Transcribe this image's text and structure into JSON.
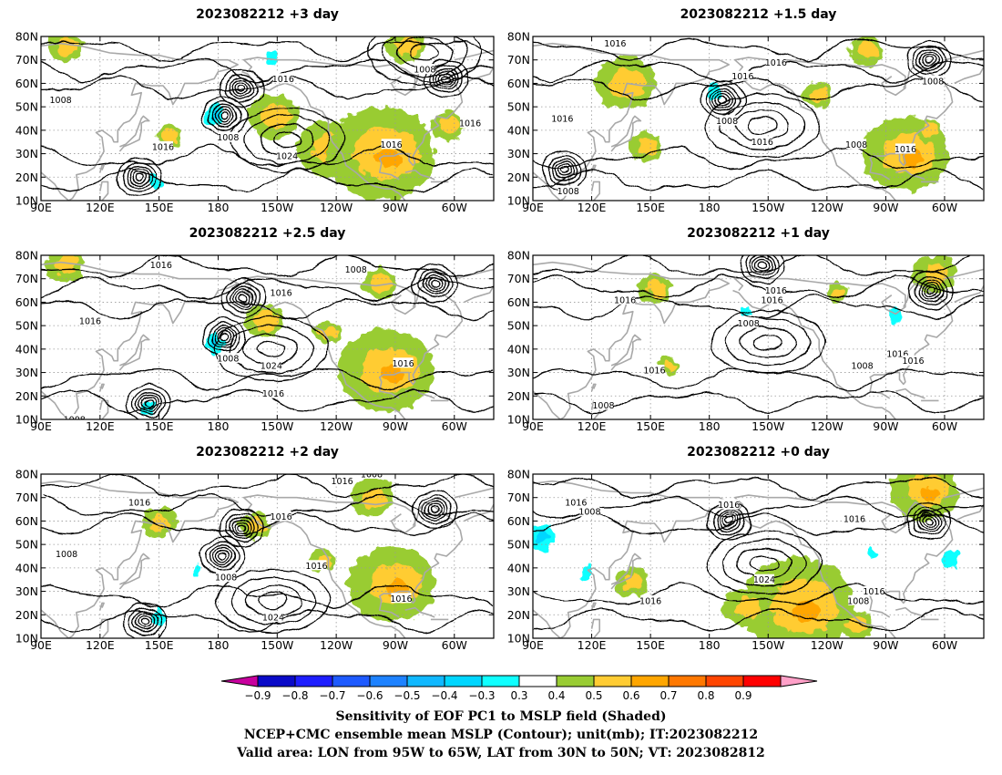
{
  "panels": [
    {
      "title": "2023082212  +3 day",
      "highs": [
        {
          "lon": 215,
          "lat": 36,
          "label": "1024"
        },
        {
          "lon": 285,
          "lat": 73,
          "label": "1008"
        }
      ],
      "lows": [
        {
          "lon": 183,
          "lat": 46,
          "label": "1008"
        },
        {
          "lon": 192,
          "lat": 58
        },
        {
          "lon": 296,
          "lat": 62
        },
        {
          "lon": 140,
          "lat": 20
        }
      ],
      "labels": [
        {
          "lon": 100,
          "lat": 53,
          "text": "1008"
        },
        {
          "lon": 213,
          "lat": 62,
          "text": "1016"
        },
        {
          "lon": 152,
          "lat": 33,
          "text": "1016"
        },
        {
          "lon": 268,
          "lat": 34,
          "text": "1016"
        },
        {
          "lon": 308,
          "lat": 43,
          "text": "1016"
        }
      ],
      "pos": [
        {
          "lon": 236,
          "lat": 32,
          "r": 15
        },
        {
          "lon": 263,
          "lat": 30,
          "r": 25
        },
        {
          "lon": 208,
          "lat": 46,
          "r": 12
        },
        {
          "lon": 275,
          "lat": 76,
          "r": 9
        },
        {
          "lon": 102,
          "lat": 76,
          "r": 8
        },
        {
          "lon": 155,
          "lat": 38,
          "r": 6
        },
        {
          "lon": 297,
          "lat": 42,
          "r": 8
        }
      ],
      "neg": [
        {
          "lon": 178,
          "lat": 46,
          "r": 4
        },
        {
          "lon": 208,
          "lat": 70,
          "r": 3
        },
        {
          "lon": 148,
          "lat": 18,
          "r": 3
        }
      ]
    },
    {
      "title": "2023082212  +1.5 day",
      "highs": [
        {
          "lon": 207,
          "lat": 42,
          "label": "1016"
        }
      ],
      "lows": [
        {
          "lon": 187,
          "lat": 53,
          "label": "1008"
        },
        {
          "lon": 292,
          "lat": 70,
          "label": "1008"
        },
        {
          "lon": 106,
          "lat": 23,
          "label": "1008"
        }
      ],
      "labels": [
        {
          "lon": 132,
          "lat": 77,
          "text": "1016"
        },
        {
          "lon": 214,
          "lat": 69,
          "text": "1016"
        },
        {
          "lon": 197,
          "lat": 63,
          "text": "1016"
        },
        {
          "lon": 105,
          "lat": 45,
          "text": "1016"
        },
        {
          "lon": 255,
          "lat": 34,
          "text": "1008"
        },
        {
          "lon": 280,
          "lat": 32,
          "text": "1016"
        }
      ],
      "pos": [
        {
          "lon": 280,
          "lat": 30,
          "r": 20
        },
        {
          "lon": 137,
          "lat": 60,
          "r": 14
        },
        {
          "lon": 148,
          "lat": 33,
          "r": 8
        },
        {
          "lon": 260,
          "lat": 74,
          "r": 8
        },
        {
          "lon": 235,
          "lat": 55,
          "r": 7
        },
        {
          "lon": 292,
          "lat": 40,
          "r": 6
        }
      ],
      "neg": [
        {
          "lon": 183,
          "lat": 57,
          "r": 3
        }
      ]
    },
    {
      "title": "2023082212  +2.5 day",
      "highs": [
        {
          "lon": 207,
          "lat": 40,
          "label": "1024"
        }
      ],
      "lows": [
        {
          "lon": 183,
          "lat": 45,
          "label": "1008"
        },
        {
          "lon": 193,
          "lat": 62
        },
        {
          "lon": 145,
          "lat": 17
        },
        {
          "lon": 290,
          "lat": 68
        }
      ],
      "labels": [
        {
          "lon": 151,
          "lat": 76,
          "text": "1016"
        },
        {
          "lon": 250,
          "lat": 74,
          "text": "1008"
        },
        {
          "lon": 115,
          "lat": 52,
          "text": "1016"
        },
        {
          "lon": 212,
          "lat": 64,
          "text": "1016"
        },
        {
          "lon": 208,
          "lat": 21,
          "text": "1016"
        },
        {
          "lon": 274,
          "lat": 34,
          "text": "1016"
        },
        {
          "lon": 107,
          "lat": 10,
          "text": "1008"
        }
      ],
      "pos": [
        {
          "lon": 265,
          "lat": 31,
          "r": 22
        },
        {
          "lon": 102,
          "lat": 76,
          "r": 9
        },
        {
          "lon": 203,
          "lat": 52,
          "r": 9
        },
        {
          "lon": 262,
          "lat": 68,
          "r": 8
        },
        {
          "lon": 235,
          "lat": 47,
          "r": 6
        }
      ],
      "neg": [
        {
          "lon": 178,
          "lat": 42,
          "r": 4
        },
        {
          "lon": 145,
          "lat": 15,
          "r": 3
        }
      ]
    },
    {
      "title": "2023082212  +1 day",
      "highs": [
        {
          "lon": 210,
          "lat": 43
        }
      ],
      "lows": [
        {
          "lon": 293,
          "lat": 65
        },
        {
          "lon": 207,
          "lat": 76
        }
      ],
      "labels": [
        {
          "lon": 214,
          "lat": 65,
          "text": "1016"
        },
        {
          "lon": 212,
          "lat": 61,
          "text": "1016"
        },
        {
          "lon": 137,
          "lat": 61,
          "text": "1016"
        },
        {
          "lon": 200,
          "lat": 51,
          "text": "1008"
        },
        {
          "lon": 126,
          "lat": 16,
          "text": "1008"
        },
        {
          "lon": 152,
          "lat": 31,
          "text": "1016"
        },
        {
          "lon": 258,
          "lat": 33,
          "text": "1008"
        },
        {
          "lon": 276,
          "lat": 38,
          "text": "1016"
        },
        {
          "lon": 284,
          "lat": 35,
          "text": "1016"
        }
      ],
      "pos": [
        {
          "lon": 295,
          "lat": 72,
          "r": 10
        },
        {
          "lon": 152,
          "lat": 66,
          "r": 8
        },
        {
          "lon": 159,
          "lat": 33,
          "r": 5
        },
        {
          "lon": 245,
          "lat": 64,
          "r": 5
        }
      ],
      "neg": [
        {
          "lon": 275,
          "lat": 54,
          "r": 3
        },
        {
          "lon": 199,
          "lat": 56,
          "r": 2
        }
      ]
    },
    {
      "title": "2023082212  +2 day",
      "highs": [
        {
          "lon": 208,
          "lat": 26,
          "label": "1024"
        }
      ],
      "lows": [
        {
          "lon": 182,
          "lat": 45,
          "label": "1008"
        },
        {
          "lon": 192,
          "lat": 57
        },
        {
          "lon": 143,
          "lat": 17
        },
        {
          "lon": 290,
          "lat": 65
        }
      ],
      "labels": [
        {
          "lon": 140,
          "lat": 68,
          "text": "1016"
        },
        {
          "lon": 243,
          "lat": 77,
          "text": "1016"
        },
        {
          "lon": 258,
          "lat": 80,
          "text": "1008"
        },
        {
          "lon": 212,
          "lat": 62,
          "text": "1016"
        },
        {
          "lon": 103,
          "lat": 46,
          "text": "1008"
        },
        {
          "lon": 230,
          "lat": 41,
          "text": "1016"
        },
        {
          "lon": 273,
          "lat": 27,
          "text": "1016"
        }
      ],
      "pos": [
        {
          "lon": 268,
          "lat": 33,
          "r": 20
        },
        {
          "lon": 150,
          "lat": 59,
          "r": 8
        },
        {
          "lon": 258,
          "lat": 70,
          "r": 10
        },
        {
          "lon": 199,
          "lat": 58,
          "r": 7
        },
        {
          "lon": 233,
          "lat": 43,
          "r": 6
        }
      ],
      "neg": [
        {
          "lon": 150,
          "lat": 19,
          "r": 3
        },
        {
          "lon": 169,
          "lat": 39,
          "r": 2
        }
      ]
    },
    {
      "title": "2023082212  +0 day",
      "highs": [
        {
          "lon": 208,
          "lat": 42,
          "label": "1024"
        }
      ],
      "lows": [
        {
          "lon": 292,
          "lat": 60
        },
        {
          "lon": 190,
          "lat": 60
        }
      ],
      "labels": [
        {
          "lon": 112,
          "lat": 68,
          "text": "1016"
        },
        {
          "lon": 119,
          "lat": 64,
          "text": "1008"
        },
        {
          "lon": 190,
          "lat": 67,
          "text": "1016"
        },
        {
          "lon": 254,
          "lat": 61,
          "text": "1016"
        },
        {
          "lon": 150,
          "lat": 26,
          "text": "1016"
        },
        {
          "lon": 256,
          "lat": 26,
          "text": "1008"
        },
        {
          "lon": 264,
          "lat": 30,
          "text": "1016"
        }
      ],
      "pos": [
        {
          "lon": 225,
          "lat": 24,
          "r": 26
        },
        {
          "lon": 290,
          "lat": 73,
          "r": 16
        },
        {
          "lon": 140,
          "lat": 34,
          "r": 8
        },
        {
          "lon": 198,
          "lat": 23,
          "r": 10
        },
        {
          "lon": 255,
          "lat": 16,
          "r": 8
        }
      ],
      "neg": [
        {
          "lon": 95,
          "lat": 53,
          "r": 5
        },
        {
          "lon": 117,
          "lat": 37,
          "r": 3
        },
        {
          "lon": 303,
          "lat": 44,
          "r": 3
        },
        {
          "lon": 263,
          "lat": 47,
          "r": 2
        }
      ]
    }
  ],
  "axis": {
    "lat_ticks": [
      "80N",
      "70N",
      "60N",
      "50N",
      "40N",
      "30N",
      "20N",
      "10N"
    ],
    "lat_values": [
      80,
      70,
      60,
      50,
      40,
      30,
      20,
      10
    ],
    "lon_ticks": [
      "90E",
      "120E",
      "150E",
      "180",
      "150W",
      "120W",
      "90W",
      "60W"
    ],
    "lon_values": [
      90,
      120,
      150,
      180,
      210,
      240,
      270,
      300
    ],
    "lon_range": [
      90,
      320
    ],
    "lat_range": [
      10,
      80
    ]
  },
  "colorbar": {
    "levels": [
      "−0.9",
      "−0.8",
      "−0.7",
      "−0.6",
      "−0.5",
      "−0.4",
      "−0.3",
      "0.3",
      "0.4",
      "0.5",
      "0.6",
      "0.7",
      "0.8",
      "0.9"
    ],
    "colors": [
      "#c8009e",
      "#0a0ac8",
      "#1e1eff",
      "#1e5aff",
      "#1e82ff",
      "#10b8ff",
      "#00d6ff",
      "#10ffff",
      "#ffffff",
      "#99cc33",
      "#ffcc33",
      "#ffa600",
      "#ff7800",
      "#ff4500",
      "#ff0000",
      "#ffa0c8"
    ]
  },
  "caption": {
    "line1": "Sensitivity of EOF PC1 to MSLP field (Shaded)",
    "line2": "NCEP+CMC ensemble mean MSLP (Contour); unit(mb); IT:2023082212",
    "line3": "Valid area: LON from 95W to 65W, LAT from 30N to 50N; VT: 2023082812"
  }
}
